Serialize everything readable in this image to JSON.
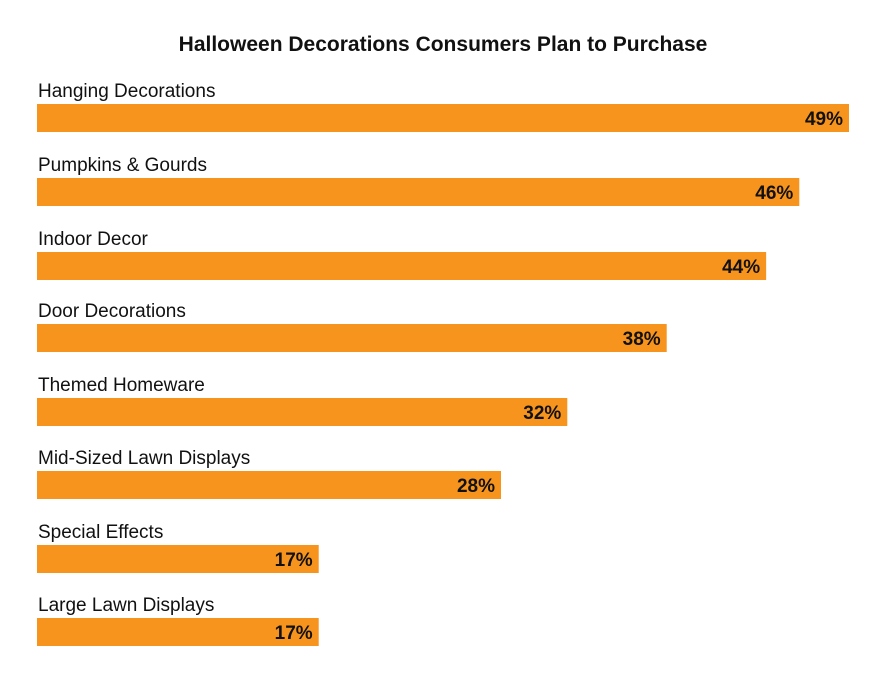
{
  "chart_data": {
    "type": "bar",
    "orientation": "horizontal",
    "title": "Halloween Decorations Consumers Plan to Purchase",
    "xlabel": "",
    "ylabel": "",
    "categories": [
      "Hanging Decorations",
      "Pumpkins & Gourds",
      "Indoor Decor",
      "Door Decorations",
      "Themed Homeware",
      "Mid-Sized Lawn Displays",
      "Special Effects",
      "Large Lawn Displays"
    ],
    "values": [
      49,
      46,
      44,
      38,
      32,
      28,
      17,
      17
    ],
    "value_labels": [
      "49%",
      "46%",
      "44%",
      "38%",
      "32%",
      "28%",
      "17%",
      "17%"
    ],
    "unit": "%",
    "xlim": [
      0,
      49
    ],
    "grid": false,
    "legend": "none",
    "bar_color": "#F7941D"
  }
}
